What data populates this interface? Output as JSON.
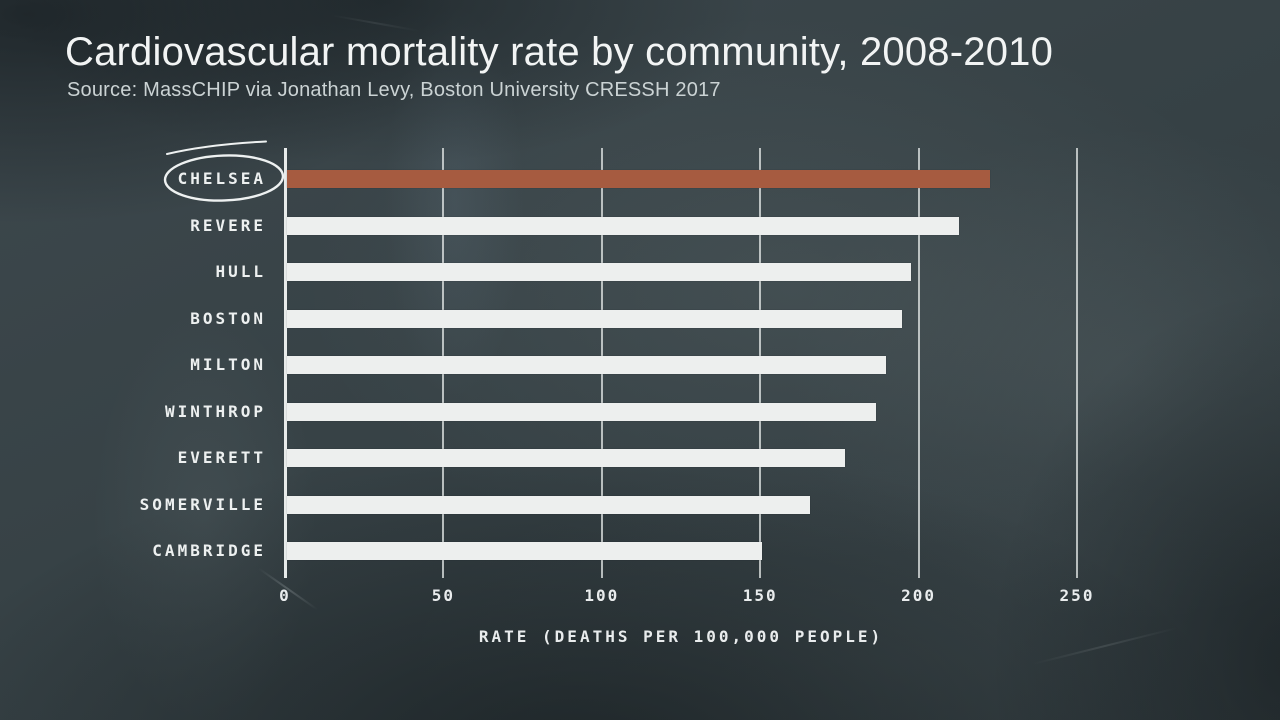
{
  "header": {
    "title": "Cardiovascular mortality rate by community, 2008-2010",
    "source": "Source: MassCHIP via Jonathan Levy, Boston University CRESSH 2017"
  },
  "chart_data": {
    "type": "bar",
    "orientation": "horizontal",
    "title": "Cardiovascular mortality rate by community, 2008-2010",
    "categories": [
      "CHELSEA",
      "REVERE",
      "HULL",
      "BOSTON",
      "MILTON",
      "WINTHROP",
      "EVERETT",
      "SOMERVILLE",
      "CAMBRIDGE"
    ],
    "values": [
      222,
      212,
      197,
      194,
      189,
      186,
      176,
      165,
      150
    ],
    "xlabel": "RATE (DEATHS PER 100,000 PEOPLE)",
    "ylabel": "",
    "xlim": [
      0,
      250
    ],
    "xticks": [
      0,
      50,
      100,
      150,
      200,
      250
    ],
    "grid": "vertical-gridlines-on",
    "legend": "none",
    "highlight": {
      "category": "CHELSEA",
      "index": 0,
      "annotation": "hand-drawn-circle"
    },
    "colors": {
      "highlight_bar": "#a65b40",
      "bar": "#edefee",
      "background": "#374246",
      "text": "#eef1f1"
    }
  }
}
